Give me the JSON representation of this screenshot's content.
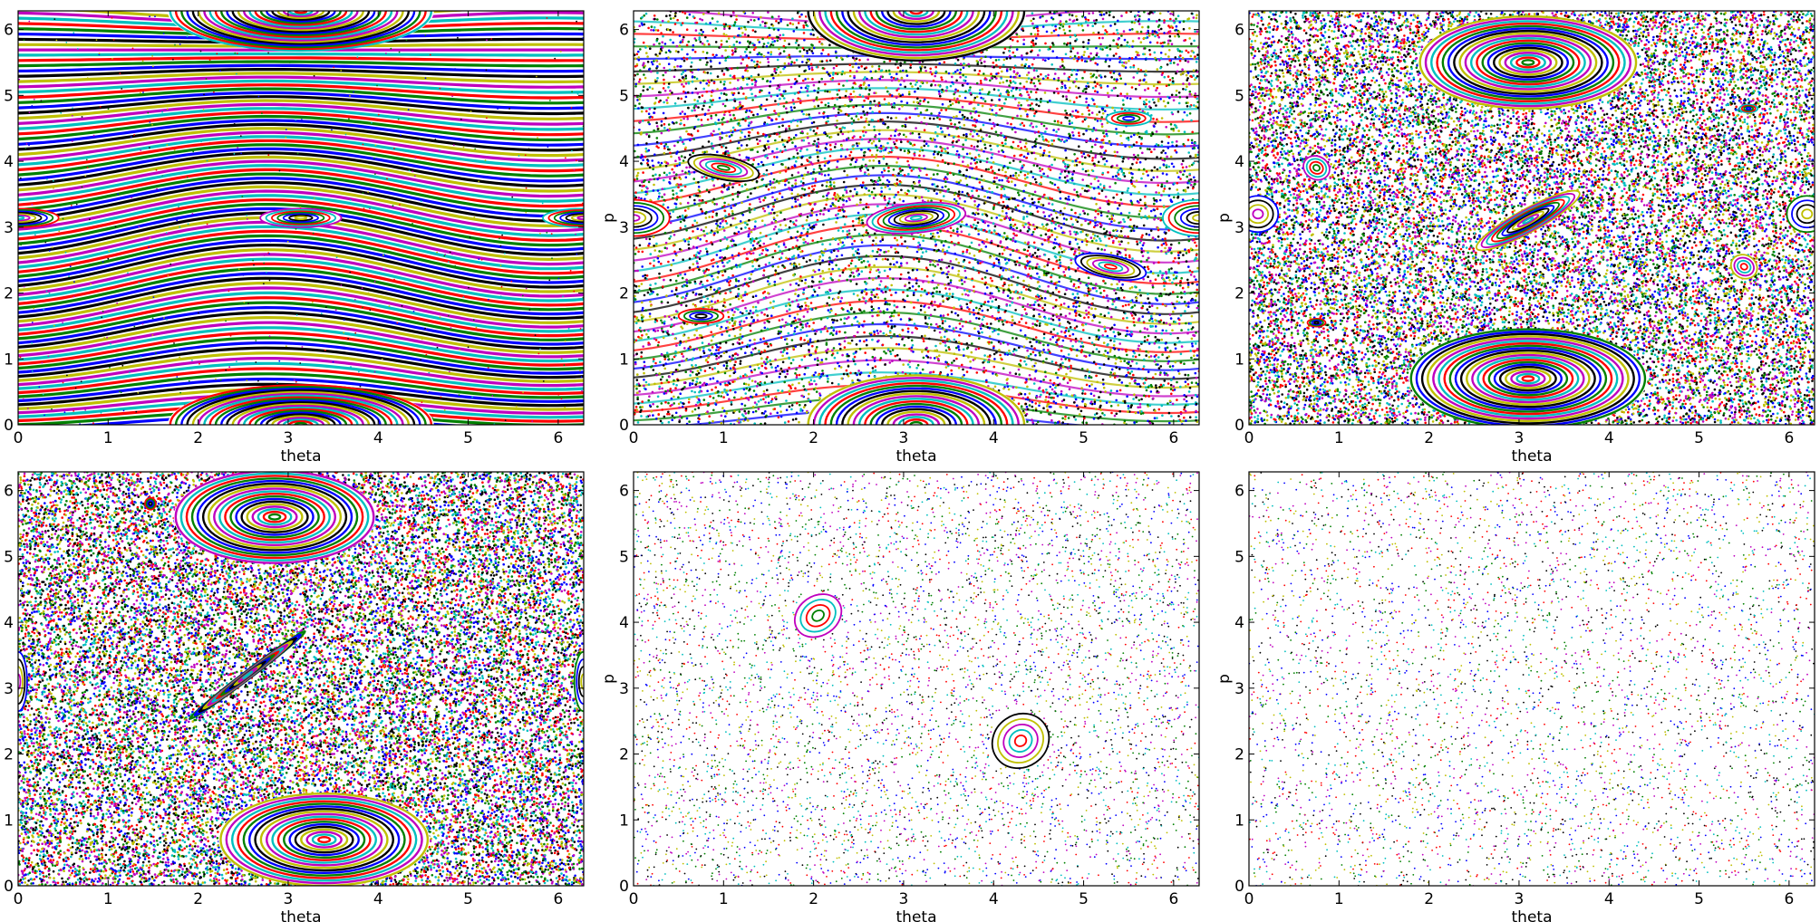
{
  "figure": {
    "palette": [
      "#0000ff",
      "#008000",
      "#ff0000",
      "#00bfbf",
      "#bf00bf",
      "#bfbf00",
      "#000000",
      "#ffffff"
    ]
  },
  "chart_data": [
    {
      "type": "scatter",
      "title": "",
      "xlabel": "theta",
      "ylabel": "",
      "xlim": [
        0,
        6.2832
      ],
      "ylim": [
        0,
        6.2832
      ],
      "xticks": [
        "0",
        "1",
        "2",
        "3",
        "4",
        "5",
        "6"
      ],
      "yticks": [
        "0",
        "1",
        "2",
        "3",
        "4",
        "5",
        "6"
      ],
      "map_parameter_order": 1,
      "regime": "mostly regular invariant curves with resonance islands at p≈0, 3.14, 6.28",
      "islands": [
        {
          "theta": 3.14,
          "p": 0.0,
          "width": 2.9,
          "height": 1.2,
          "tilt": 0
        },
        {
          "theta": 3.14,
          "p": 6.28,
          "width": 2.9,
          "height": 1.2,
          "tilt": 0
        },
        {
          "theta": 0.0,
          "p": 3.14,
          "width": 0.9,
          "height": 0.28,
          "tilt": 0
        },
        {
          "theta": 6.28,
          "p": 3.14,
          "width": 0.9,
          "height": 0.28,
          "tilt": 0
        },
        {
          "theta": 3.14,
          "p": 3.14,
          "width": 0.9,
          "height": 0.28,
          "tilt": 0
        }
      ],
      "chaos_density": 0.02
    },
    {
      "type": "scatter",
      "title": "",
      "xlabel": "theta",
      "ylabel": "p",
      "xlim": [
        0,
        6.2832
      ],
      "ylim": [
        0,
        6.2832
      ],
      "xticks": [
        "0",
        "1",
        "2",
        "3",
        "4",
        "5",
        "6"
      ],
      "yticks": [
        "0",
        "1",
        "2",
        "3",
        "4",
        "5",
        "6"
      ],
      "map_parameter_order": 2,
      "regime": "mixed phase space: large primary islands, secondary island chains, thin chaotic layers",
      "islands": [
        {
          "theta": 3.14,
          "p": 0.0,
          "width": 2.4,
          "height": 1.5,
          "tilt": 0
        },
        {
          "theta": 3.14,
          "p": 6.28,
          "width": 2.4,
          "height": 1.5,
          "tilt": 0
        },
        {
          "theta": 3.14,
          "p": 3.14,
          "width": 1.1,
          "height": 0.45,
          "tilt": 0.1
        },
        {
          "theta": 0.0,
          "p": 3.14,
          "width": 0.8,
          "height": 0.55,
          "tilt": 0
        },
        {
          "theta": 6.28,
          "p": 3.14,
          "width": 0.8,
          "height": 0.55,
          "tilt": 0
        },
        {
          "theta": 0.75,
          "p": 1.65,
          "width": 0.5,
          "height": 0.22,
          "tilt": 0
        },
        {
          "theta": 5.5,
          "p": 4.65,
          "width": 0.5,
          "height": 0.22,
          "tilt": 0
        },
        {
          "theta": 1.0,
          "p": 3.9,
          "width": 0.8,
          "height": 0.35,
          "tilt": -0.2
        },
        {
          "theta": 5.3,
          "p": 2.4,
          "width": 0.8,
          "height": 0.35,
          "tilt": -0.2
        }
      ],
      "chaos_density": 0.35
    },
    {
      "type": "scatter",
      "title": "",
      "xlabel": "theta",
      "ylabel": "p",
      "xlim": [
        0,
        6.2832
      ],
      "ylim": [
        0,
        6.2832
      ],
      "xticks": [
        "0",
        "1",
        "2",
        "3",
        "4",
        "5",
        "6"
      ],
      "yticks": [
        "0",
        "1",
        "2",
        "3",
        "4",
        "5",
        "6"
      ],
      "map_parameter_order": 3,
      "regime": "predominantly chaotic sea with surviving islands",
      "islands": [
        {
          "theta": 3.1,
          "p": 5.5,
          "width": 2.4,
          "height": 1.4,
          "tilt": 0
        },
        {
          "theta": 3.1,
          "p": 0.7,
          "width": 2.6,
          "height": 1.5,
          "tilt": 0
        },
        {
          "theta": 3.1,
          "p": 3.1,
          "width": 1.3,
          "height": 0.35,
          "tilt": 0.5
        },
        {
          "theta": 0.1,
          "p": 3.2,
          "width": 0.45,
          "height": 0.55,
          "tilt": 0
        },
        {
          "theta": 6.2,
          "p": 3.2,
          "width": 0.45,
          "height": 0.55,
          "tilt": 0
        },
        {
          "theta": 0.75,
          "p": 1.55,
          "width": 0.2,
          "height": 0.12,
          "tilt": 0
        },
        {
          "theta": 5.55,
          "p": 4.8,
          "width": 0.2,
          "height": 0.12,
          "tilt": 0
        },
        {
          "theta": 0.75,
          "p": 3.9,
          "width": 0.3,
          "height": 0.35,
          "tilt": -0.5
        },
        {
          "theta": 5.5,
          "p": 2.4,
          "width": 0.3,
          "height": 0.35,
          "tilt": -0.5
        }
      ],
      "chaos_density": 0.85
    },
    {
      "type": "scatter",
      "title": "",
      "xlabel": "theta",
      "ylabel": "",
      "xlim": [
        0,
        6.2832
      ],
      "ylim": [
        0,
        6.2832
      ],
      "xticks": [
        "0",
        "1",
        "2",
        "3",
        "4",
        "5",
        "6"
      ],
      "yticks": [
        "0",
        "1",
        "2",
        "3",
        "4",
        "5",
        "6"
      ],
      "map_parameter_order": 4,
      "regime": "dense chaotic sea with triangular islands",
      "islands": [
        {
          "theta": 2.85,
          "p": 5.6,
          "width": 2.2,
          "height": 1.4,
          "tilt": 0
        },
        {
          "theta": 3.4,
          "p": 0.7,
          "width": 2.3,
          "height": 1.4,
          "tilt": 0
        },
        {
          "theta": 2.55,
          "p": 3.2,
          "width": 1.6,
          "height": 0.12,
          "tilt": 0.65
        },
        {
          "theta": 0.0,
          "p": 3.1,
          "width": 0.2,
          "height": 0.9,
          "tilt": 0
        },
        {
          "theta": 6.28,
          "p": 3.1,
          "width": 0.2,
          "height": 0.9,
          "tilt": 0
        },
        {
          "theta": 1.47,
          "p": 5.8,
          "width": 0.12,
          "height": 0.18,
          "tilt": 0
        }
      ],
      "chaos_density": 0.95
    },
    {
      "type": "scatter",
      "title": "",
      "xlabel": "theta",
      "ylabel": "p",
      "xlim": [
        0,
        6.2832
      ],
      "ylim": [
        0,
        6.2832
      ],
      "xticks": [
        "0",
        "1",
        "2",
        "3",
        "4",
        "5",
        "6"
      ],
      "yticks": [
        "0",
        "1",
        "2",
        "3",
        "4",
        "5",
        "6"
      ],
      "map_parameter_order": 5,
      "regime": "sparse chaotic scatter with two small islands",
      "islands": [
        {
          "theta": 2.05,
          "p": 4.1,
          "width": 0.55,
          "height": 0.6,
          "tilt": 0.6
        },
        {
          "theta": 4.3,
          "p": 2.2,
          "width": 0.65,
          "height": 0.8,
          "tilt": 0.6
        }
      ],
      "chaos_density": 0.22
    },
    {
      "type": "scatter",
      "title": "",
      "xlabel": "theta",
      "ylabel": "p",
      "xlim": [
        0,
        6.2832
      ],
      "ylim": [
        0,
        6.2832
      ],
      "xticks": [
        "0",
        "1",
        "2",
        "3",
        "4",
        "5",
        "6"
      ],
      "yticks": [
        "0",
        "1",
        "2",
        "3",
        "4",
        "5",
        "6"
      ],
      "map_parameter_order": 6,
      "regime": "fully chaotic sparse scatter",
      "islands": [],
      "chaos_density": 0.18
    }
  ]
}
